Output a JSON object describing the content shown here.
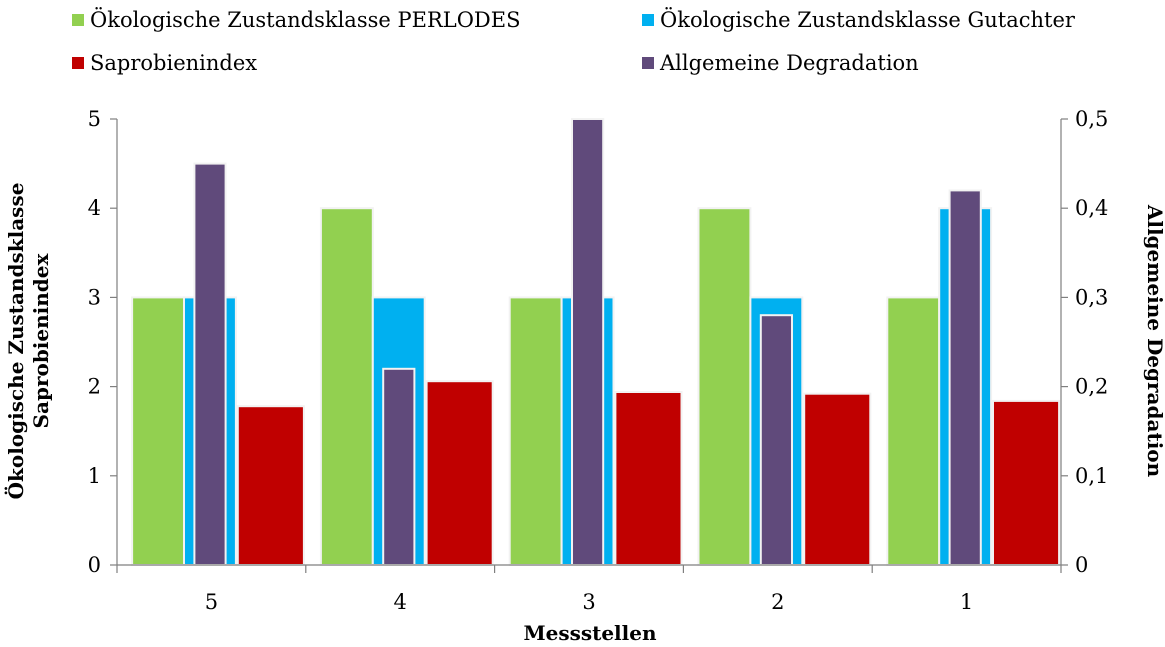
{
  "chart_data": {
    "type": "bar",
    "categories": [
      "5",
      "4",
      "3",
      "2",
      "1"
    ],
    "series": [
      {
        "name": "Ökologische Zustandsklasse PERLODES",
        "axis": "left",
        "color": "#92D050",
        "values": [
          3,
          4,
          3,
          4,
          3
        ]
      },
      {
        "name": "Ökologische Zustandsklasse Gutachter",
        "axis": "left",
        "color": "#00B0F0",
        "values": [
          3,
          3,
          3,
          3,
          4
        ]
      },
      {
        "name": "Saprobienindex",
        "axis": "left",
        "color": "#C00000",
        "values": [
          1.78,
          2.06,
          1.94,
          1.92,
          1.84
        ]
      },
      {
        "name": "Allgemeine Degradation",
        "axis": "right",
        "color": "#604A7B",
        "values": [
          0.45,
          0.22,
          0.5,
          0.28,
          0.42
        ]
      }
    ],
    "xlabel": "Messstellen",
    "ylabel": [
      "Ökologische Zustandsklasse",
      "Saprobienindex"
    ],
    "y2label": "Allgemeine Degradation",
    "ylim": [
      0,
      5
    ],
    "y2lim": [
      0,
      0.5
    ],
    "yticks": [
      "0",
      "1",
      "2",
      "3",
      "4",
      "5"
    ],
    "y2ticks": [
      "0",
      "0,1",
      "0,2",
      "0,3",
      "0,4",
      "0,5"
    ],
    "grid": false,
    "legend_position": "top"
  }
}
